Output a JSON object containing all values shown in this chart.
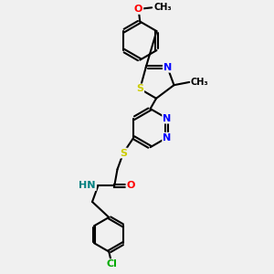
{
  "background_color": "#f0f0f0",
  "atom_colors": {
    "N": "#0000ff",
    "O": "#ff0000",
    "S": "#cccc00",
    "Cl": "#00aa00",
    "C": "#000000",
    "H": "#008080"
  },
  "bond_color": "#000000",
  "bond_width": 1.5,
  "font_size": 8,
  "figsize": [
    3.0,
    3.0
  ],
  "dpi": 100,
  "xlim": [
    -1.8,
    2.2
  ],
  "ylim": [
    -4.8,
    4.2
  ]
}
